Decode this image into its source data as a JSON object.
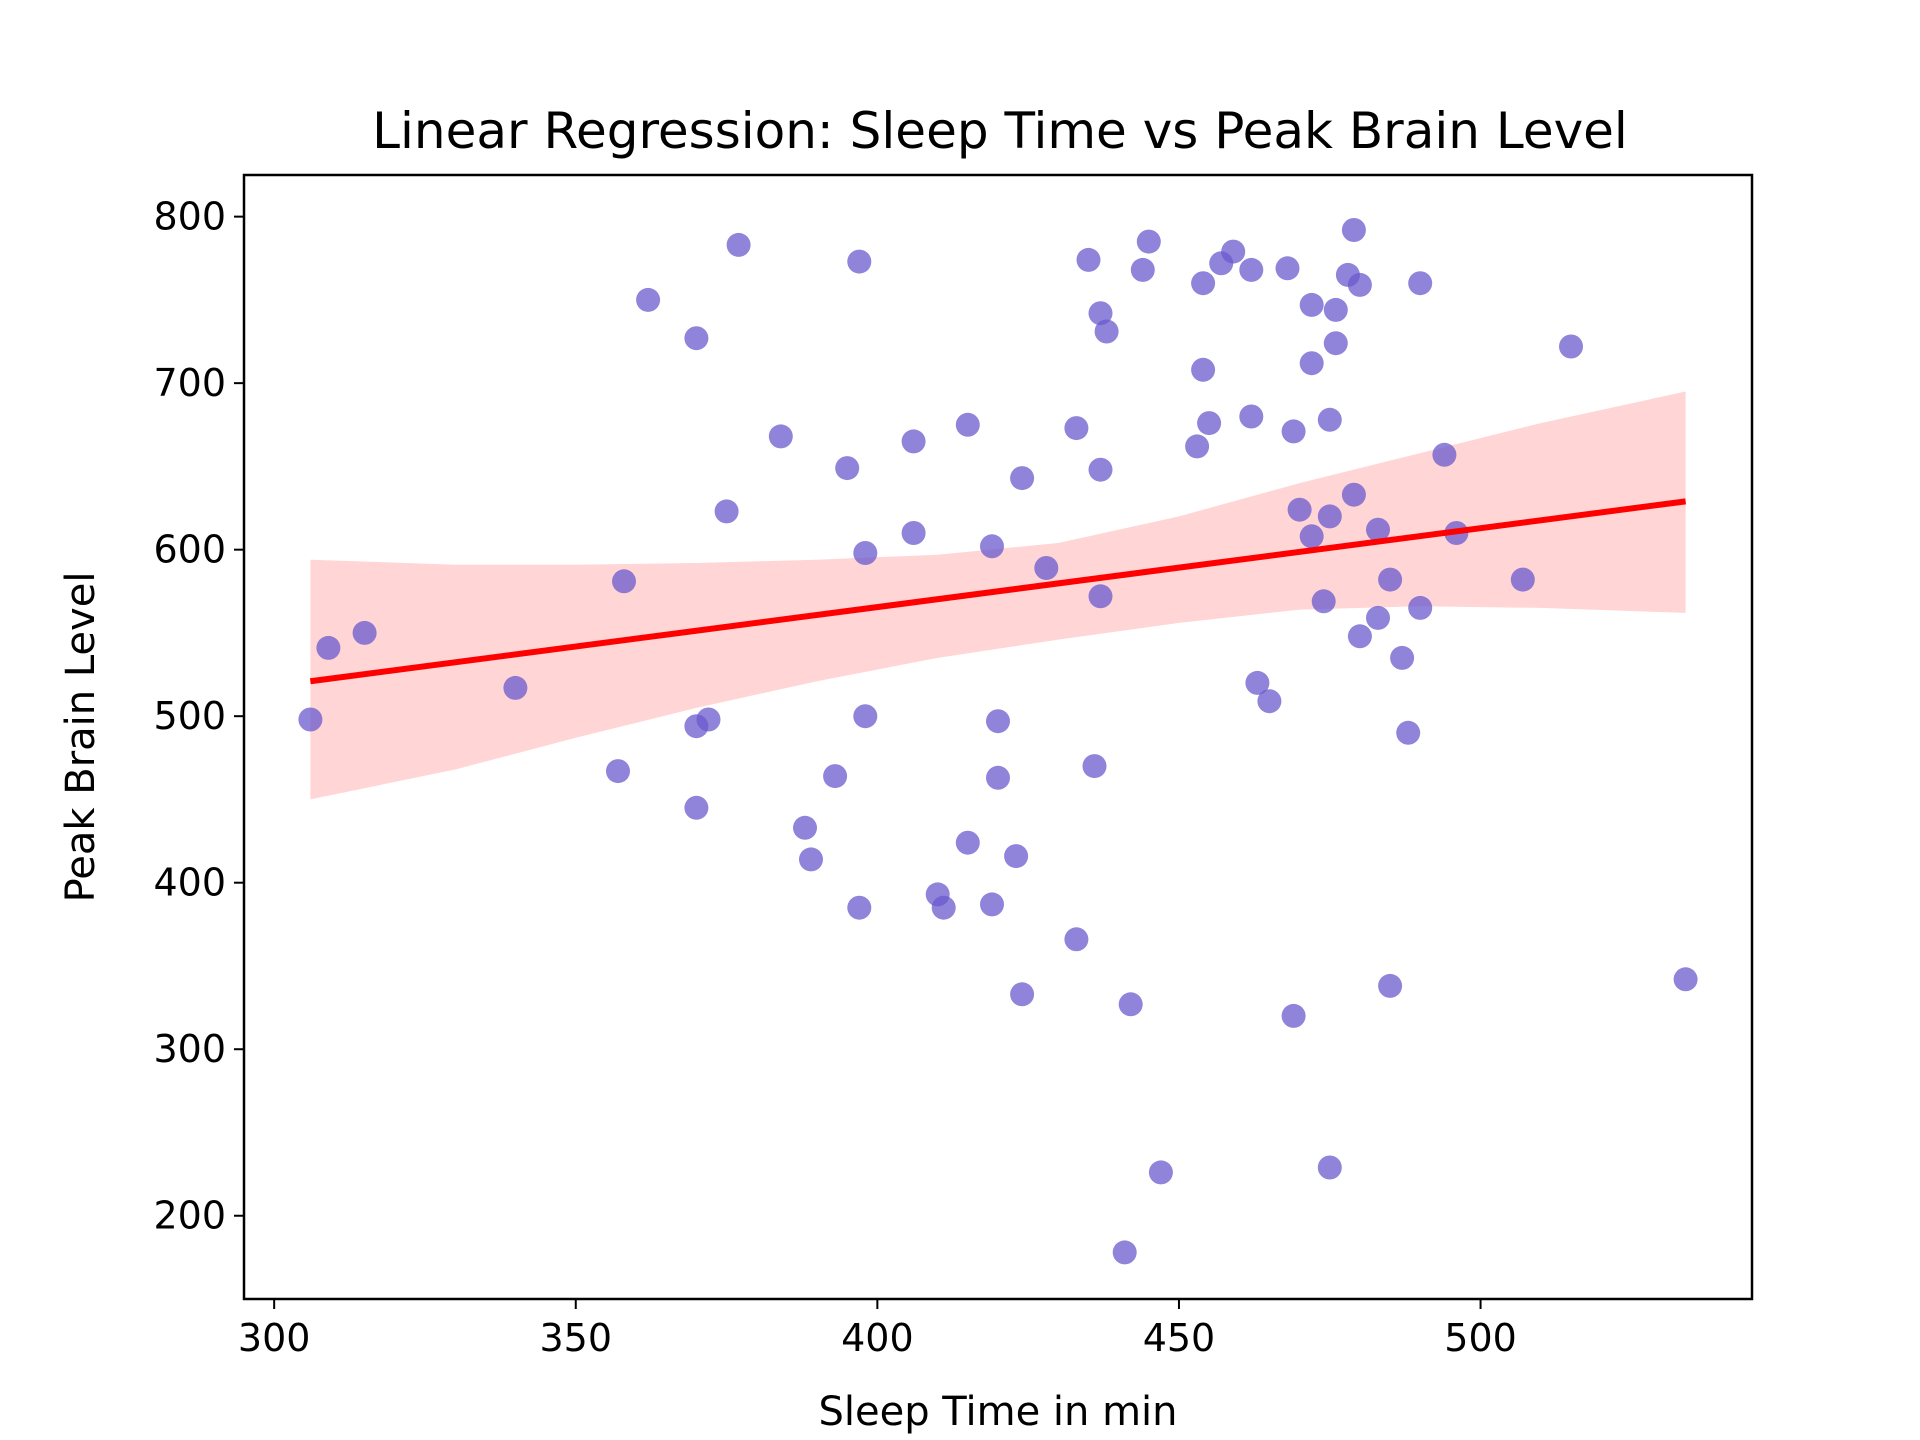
{
  "chart_data": {
    "type": "scatter",
    "title": "Linear Regression: Sleep Time vs Peak Brain Level",
    "xlabel": "Sleep Time in min",
    "ylabel": "Peak Brain Level",
    "xlim": [
      295,
      545
    ],
    "ylim": [
      150,
      825
    ],
    "xticks": [
      300,
      350,
      400,
      450,
      500
    ],
    "yticks": [
      200,
      300,
      400,
      500,
      600,
      700,
      800
    ],
    "grid": false,
    "colors": {
      "points": "#6a5acd",
      "regression_line": "#ff0000",
      "confidence_band": "#ffb3b3"
    },
    "points": [
      {
        "x": 306,
        "y": 498
      },
      {
        "x": 309,
        "y": 541
      },
      {
        "x": 315,
        "y": 550
      },
      {
        "x": 340,
        "y": 517
      },
      {
        "x": 357,
        "y": 467
      },
      {
        "x": 358,
        "y": 581
      },
      {
        "x": 362,
        "y": 750
      },
      {
        "x": 370,
        "y": 727
      },
      {
        "x": 370,
        "y": 494
      },
      {
        "x": 372,
        "y": 498
      },
      {
        "x": 370,
        "y": 445
      },
      {
        "x": 375,
        "y": 623
      },
      {
        "x": 377,
        "y": 783
      },
      {
        "x": 384,
        "y": 668
      },
      {
        "x": 388,
        "y": 433
      },
      {
        "x": 389,
        "y": 414
      },
      {
        "x": 393,
        "y": 464
      },
      {
        "x": 395,
        "y": 649
      },
      {
        "x": 397,
        "y": 773
      },
      {
        "x": 397,
        "y": 385
      },
      {
        "x": 398,
        "y": 598
      },
      {
        "x": 398,
        "y": 500
      },
      {
        "x": 406,
        "y": 610
      },
      {
        "x": 406,
        "y": 665
      },
      {
        "x": 410,
        "y": 393
      },
      {
        "x": 411,
        "y": 385
      },
      {
        "x": 415,
        "y": 675
      },
      {
        "x": 415,
        "y": 424
      },
      {
        "x": 419,
        "y": 602
      },
      {
        "x": 419,
        "y": 387
      },
      {
        "x": 420,
        "y": 497
      },
      {
        "x": 420,
        "y": 463
      },
      {
        "x": 423,
        "y": 416
      },
      {
        "x": 424,
        "y": 643
      },
      {
        "x": 424,
        "y": 333
      },
      {
        "x": 428,
        "y": 589
      },
      {
        "x": 433,
        "y": 673
      },
      {
        "x": 433,
        "y": 366
      },
      {
        "x": 435,
        "y": 774
      },
      {
        "x": 436,
        "y": 470
      },
      {
        "x": 437,
        "y": 742
      },
      {
        "x": 437,
        "y": 648
      },
      {
        "x": 437,
        "y": 572
      },
      {
        "x": 438,
        "y": 731
      },
      {
        "x": 441,
        "y": 178
      },
      {
        "x": 442,
        "y": 327
      },
      {
        "x": 444,
        "y": 768
      },
      {
        "x": 445,
        "y": 785
      },
      {
        "x": 447,
        "y": 226
      },
      {
        "x": 453,
        "y": 662
      },
      {
        "x": 454,
        "y": 760
      },
      {
        "x": 454,
        "y": 708
      },
      {
        "x": 455,
        "y": 676
      },
      {
        "x": 457,
        "y": 772
      },
      {
        "x": 459,
        "y": 779
      },
      {
        "x": 462,
        "y": 768
      },
      {
        "x": 462,
        "y": 680
      },
      {
        "x": 463,
        "y": 520
      },
      {
        "x": 465,
        "y": 509
      },
      {
        "x": 468,
        "y": 769
      },
      {
        "x": 469,
        "y": 671
      },
      {
        "x": 469,
        "y": 320
      },
      {
        "x": 470,
        "y": 624
      },
      {
        "x": 472,
        "y": 747
      },
      {
        "x": 472,
        "y": 712
      },
      {
        "x": 472,
        "y": 608
      },
      {
        "x": 474,
        "y": 569
      },
      {
        "x": 475,
        "y": 678
      },
      {
        "x": 475,
        "y": 620
      },
      {
        "x": 475,
        "y": 229
      },
      {
        "x": 476,
        "y": 744
      },
      {
        "x": 476,
        "y": 724
      },
      {
        "x": 478,
        "y": 765
      },
      {
        "x": 479,
        "y": 792
      },
      {
        "x": 479,
        "y": 633
      },
      {
        "x": 480,
        "y": 759
      },
      {
        "x": 480,
        "y": 548
      },
      {
        "x": 483,
        "y": 612
      },
      {
        "x": 483,
        "y": 559
      },
      {
        "x": 485,
        "y": 582
      },
      {
        "x": 485,
        "y": 338
      },
      {
        "x": 487,
        "y": 535
      },
      {
        "x": 488,
        "y": 490
      },
      {
        "x": 490,
        "y": 760
      },
      {
        "x": 490,
        "y": 565
      },
      {
        "x": 494,
        "y": 657
      },
      {
        "x": 496,
        "y": 610
      },
      {
        "x": 507,
        "y": 582
      },
      {
        "x": 515,
        "y": 722
      },
      {
        "x": 534,
        "y": 342
      }
    ],
    "regression_line": {
      "x": [
        306,
        534
      ],
      "y": [
        521,
        629
      ]
    },
    "confidence_band": {
      "x": [
        306,
        330,
        350,
        370,
        390,
        410,
        430,
        450,
        470,
        490,
        510,
        534
      ],
      "lower": [
        450,
        468,
        487,
        505,
        521,
        535,
        546,
        556,
        564,
        566,
        565,
        562
      ],
      "upper": [
        594,
        591,
        591,
        592,
        594,
        597,
        604,
        620,
        640,
        658,
        676,
        695
      ]
    }
  }
}
